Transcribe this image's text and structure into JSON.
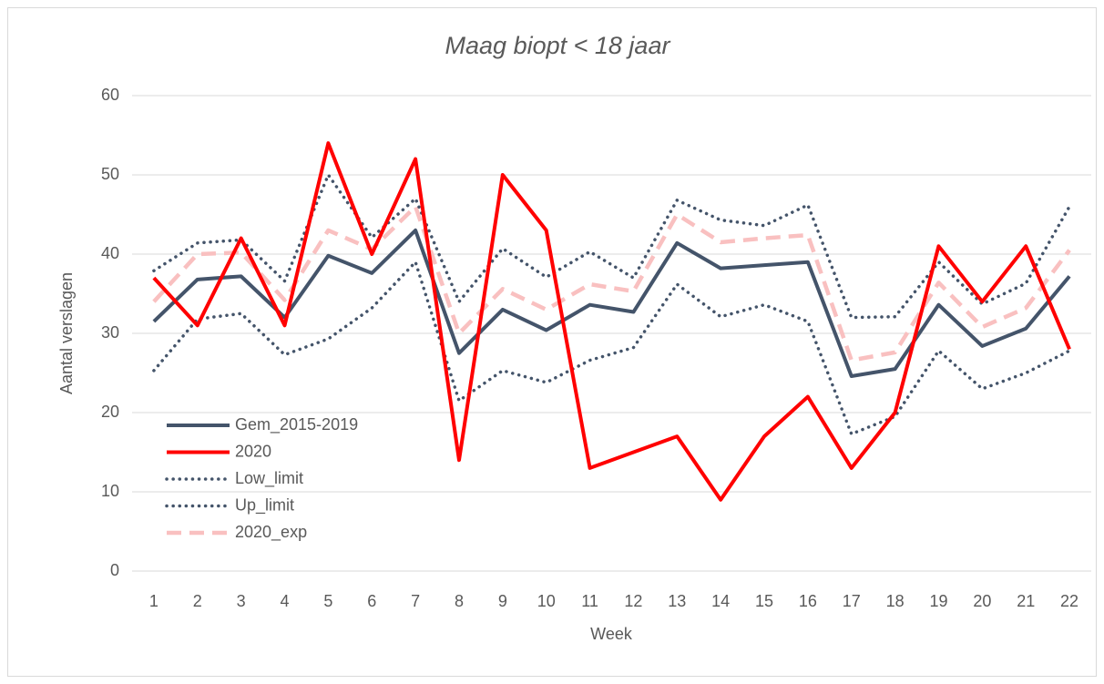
{
  "chart_data": {
    "type": "line",
    "title": "Maag biopt < 18 jaar",
    "x_label": "Week",
    "y_label": "Aantal verslagen",
    "categories": [
      "1",
      "2",
      "3",
      "4",
      "5",
      "6",
      "7",
      "8",
      "9",
      "10",
      "11",
      "12",
      "13",
      "14",
      "15",
      "16",
      "17",
      "18",
      "19",
      "20",
      "21",
      "22"
    ],
    "ylim": [
      0,
      60
    ],
    "yticks": [
      0,
      10,
      20,
      30,
      40,
      50,
      60
    ],
    "grid": true,
    "legend": "lower left",
    "series": [
      {
        "name": "Gem_2015-2019",
        "color": "#44546a",
        "style": "solid",
        "values": [
          31.5,
          36.8,
          37.2,
          32,
          39.8,
          37.6,
          43,
          27.5,
          33,
          30.4,
          33.6,
          32.7,
          41.4,
          38.2,
          38.6,
          39,
          24.6,
          25.5,
          33.6,
          28.4,
          30.6,
          37.2
        ]
      },
      {
        "name": "2020",
        "color": "#ff0000",
        "style": "solid",
        "values": [
          37,
          31,
          42,
          31,
          54,
          40,
          52,
          14,
          50,
          43,
          13,
          15,
          17,
          9,
          17,
          22,
          13,
          20,
          41,
          34,
          41,
          28
        ]
      },
      {
        "name": "Low_limit",
        "color": "#44546a",
        "style": "dotted",
        "values": [
          25.3,
          31.8,
          32.5,
          27.3,
          29.3,
          33.2,
          39,
          21.5,
          25.3,
          23.8,
          26.6,
          28.2,
          36.2,
          32.1,
          33.6,
          31.5,
          17.3,
          19.5,
          27.8,
          23,
          25,
          27.8
        ]
      },
      {
        "name": "Up_limit",
        "color": "#44546a",
        "style": "dotted",
        "values": [
          37.9,
          41.4,
          41.8,
          36.6,
          50,
          42.1,
          47,
          34,
          40.7,
          37.1,
          40.3,
          37,
          46.8,
          44.3,
          43.6,
          46.2,
          32,
          32.1,
          39,
          33.7,
          36.3,
          46
        ]
      },
      {
        "name": "2020_exp",
        "color": "#f9c0c0",
        "style": "dashed",
        "values": [
          34,
          40,
          40.2,
          34.2,
          43,
          40.6,
          46,
          30,
          35.6,
          33,
          36.2,
          35.3,
          45,
          41.5,
          42,
          42.4,
          26.6,
          27.6,
          36.4,
          30.8,
          33.2,
          40.5
        ]
      }
    ]
  }
}
